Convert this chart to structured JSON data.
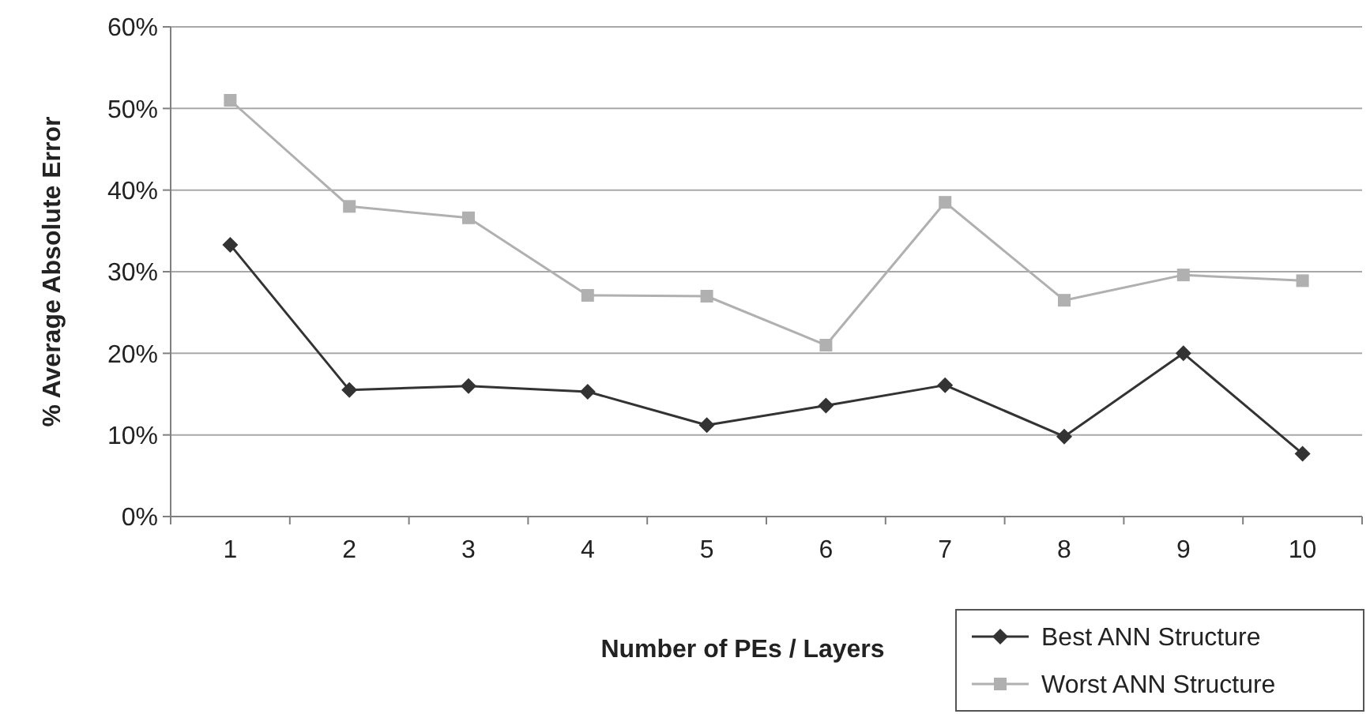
{
  "chart_data": {
    "type": "line",
    "xlabel": "Number of PEs / Layers",
    "ylabel": "% Average Absolute Error",
    "categories": [
      "1",
      "2",
      "3",
      "4",
      "5",
      "6",
      "7",
      "8",
      "9",
      "10"
    ],
    "ylim": [
      0,
      60
    ],
    "yticks": [
      {
        "value": 0,
        "label": "0%"
      },
      {
        "value": 10,
        "label": "10%"
      },
      {
        "value": 20,
        "label": "20%"
      },
      {
        "value": 30,
        "label": "30%"
      },
      {
        "value": 40,
        "label": "40%"
      },
      {
        "value": 50,
        "label": "50%"
      },
      {
        "value": 60,
        "label": "60%"
      }
    ],
    "grid": "y",
    "legend": "bottom right",
    "series": [
      {
        "name": "Best ANN Structure",
        "color": "#333333",
        "marker": "diamond",
        "values": [
          33.3,
          15.5,
          16,
          15.3,
          11.2,
          13.6,
          16.1,
          9.8,
          20,
          7.7
        ]
      },
      {
        "name": "Worst ANN Structure",
        "color": "#b0b0b0",
        "marker": "square",
        "values": [
          51,
          38,
          36.6,
          27.1,
          27,
          21,
          38.5,
          26.5,
          29.6,
          28.9
        ]
      }
    ]
  }
}
